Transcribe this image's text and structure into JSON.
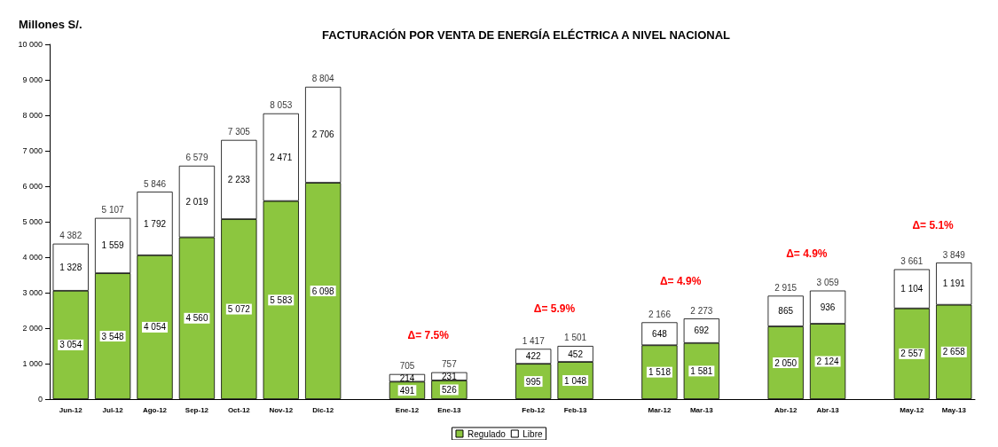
{
  "chart_data": {
    "type": "bar",
    "title": "FACTURACIÓN POR VENTA DE ENERGÍA ELÉCTRICA A NIVEL NACIONAL",
    "ylabel": "Millones S/.",
    "categories": [
      "Jun-12",
      "Jul-12",
      "Ago-12",
      "Sep-12",
      "Oct-12",
      "Nov-12",
      "Dic-12",
      null,
      "Ene-12",
      "Ene-13",
      null,
      "Feb-12",
      "Feb-13",
      null,
      "Mar-12",
      "Mar-13",
      null,
      "Abr-12",
      "Abr-13",
      null,
      "May-12",
      "May-13"
    ],
    "stacked": true,
    "series": [
      {
        "name": "Regulado",
        "color": "#8cc63f",
        "values": [
          3054,
          3548,
          4054,
          4560,
          5072,
          5583,
          6098,
          null,
          491,
          526,
          null,
          995,
          1048,
          null,
          1518,
          1581,
          null,
          2050,
          2124,
          null,
          2557,
          2658
        ],
        "value_labels": [
          "3 054",
          "3 548",
          "4 054",
          "4 560",
          "5 072",
          "5 583",
          "6 098",
          null,
          "491",
          "526",
          null,
          "995",
          "1 048",
          null,
          "1 518",
          "1 581",
          null,
          "2 050",
          "2 124",
          null,
          "2 557",
          "2 658"
        ]
      },
      {
        "name": "Libre",
        "color": "#ffffff",
        "values": [
          1328,
          1559,
          1792,
          2019,
          2233,
          2471,
          2706,
          null,
          214,
          231,
          null,
          422,
          452,
          null,
          648,
          692,
          null,
          865,
          936,
          null,
          1104,
          1191
        ],
        "value_labels": [
          "1 328",
          "1 559",
          "1 792",
          "2 019",
          "2 233",
          "2 471",
          "2 706",
          null,
          "214",
          "231",
          null,
          "422",
          "452",
          null,
          "648",
          "692",
          null,
          "865",
          "936",
          null,
          "1 104",
          "1 191"
        ]
      }
    ],
    "totals": [
      "4 382",
      "5 107",
      "5 846",
      "6 579",
      "7 305",
      "8 053",
      "8 804",
      null,
      "705",
      "757",
      null,
      "1 417",
      "1 501",
      null,
      "2 166",
      "2 273",
      null,
      "2 915",
      "3 059",
      null,
      "3 661",
      "3 849"
    ],
    "annotations": [
      "Δ= 7.5%",
      "Δ= 5.9%",
      "Δ= 4.9%",
      "Δ= 4.9%",
      "Δ= 5.1%"
    ],
    "ylim": [
      0,
      10000
    ],
    "yticks": [
      {
        "value": 0,
        "label": "0"
      },
      {
        "value": 1000,
        "label": "1 000"
      },
      {
        "value": 2000,
        "label": "2 000"
      },
      {
        "value": 3000,
        "label": "3 000"
      },
      {
        "value": 4000,
        "label": "4 000"
      },
      {
        "value": 5000,
        "label": "5 000"
      },
      {
        "value": 6000,
        "label": "6 000"
      },
      {
        "value": 7000,
        "label": "7 000"
      },
      {
        "value": 8000,
        "label": "8 000"
      },
      {
        "value": 9000,
        "label": "9 000"
      },
      {
        "value": 10000,
        "label": "10 000"
      }
    ],
    "grid": false,
    "legend": "bottom"
  }
}
